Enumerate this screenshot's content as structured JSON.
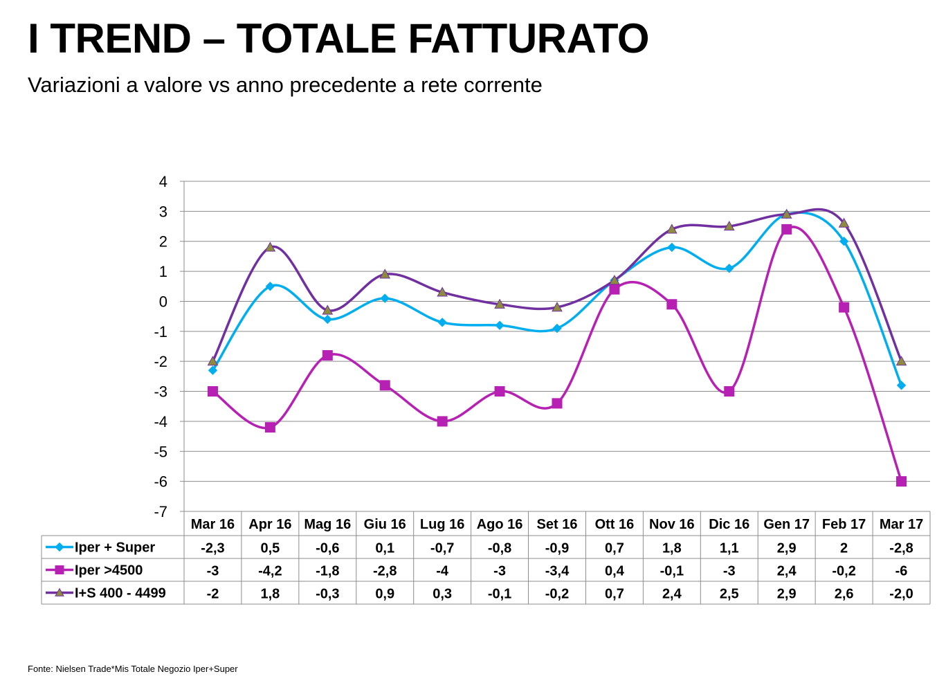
{
  "title": "I TREND – TOTALE FATTURATO",
  "subtitle": "Variazioni a valore vs anno precedente a rete corrente",
  "source": "Fonte: Nielsen Trade*Mis Totale Negozio  Iper+Super",
  "chart_data": {
    "type": "line",
    "smooth": true,
    "grid": true,
    "legend": "data-table-below",
    "ylim": [
      -7,
      4
    ],
    "yticks": [
      4,
      3,
      2,
      1,
      0,
      -1,
      -2,
      -3,
      -4,
      -5,
      -6,
      -7
    ],
    "ytick_labels": [
      "4",
      "3",
      "2",
      "1",
      "0",
      "-1",
      "-2",
      "-3",
      "-4",
      "-5",
      "-6",
      "-7"
    ],
    "categories": [
      "Mar 16",
      "Apr 16",
      "Mag 16",
      "Giu 16",
      "Lug 16",
      "Ago 16",
      "Set 16",
      "Ott 16",
      "Nov 16",
      "Dic 16",
      "Gen 17",
      "Feb 17",
      "Mar 17"
    ],
    "series": [
      {
        "name": "Iper + Super",
        "color": "#00AEEF",
        "marker": "diamond",
        "values": [
          -2.3,
          0.5,
          -0.6,
          0.1,
          -0.7,
          -0.8,
          -0.9,
          0.7,
          1.8,
          1.1,
          2.9,
          2,
          -2.8
        ],
        "labels": [
          "-2,3",
          "0,5",
          "-0,6",
          "0,1",
          "-0,7",
          "-0,8",
          "-0,9",
          "0,7",
          "1,8",
          "1,1",
          "2,9",
          "2",
          "-2,8"
        ]
      },
      {
        "name": "Iper >4500",
        "color": "#B620B3",
        "marker": "square",
        "values": [
          -3,
          -4.2,
          -1.8,
          -2.8,
          -4,
          -3,
          -3.4,
          0.4,
          -0.1,
          -3,
          2.4,
          -0.2,
          -6
        ],
        "labels": [
          "-3",
          "-4,2",
          "-1,8",
          "-2,8",
          "-4",
          "-3",
          "-3,4",
          "0,4",
          "-0,1",
          "-3",
          "2,4",
          "-0,2",
          "-6"
        ]
      },
      {
        "name": "I+S 400 - 4499",
        "color": "#7030A0",
        "marker": "triangle",
        "marker_color": "#8C8C3C",
        "values": [
          -2,
          1.8,
          -0.3,
          0.9,
          0.3,
          -0.1,
          -0.2,
          0.7,
          2.4,
          2.5,
          2.9,
          2.6,
          -2.0
        ],
        "labels": [
          "-2",
          "1,8",
          "-0,3",
          "0,9",
          "0,3",
          "-0,1",
          "-0,2",
          "0,7",
          "2,4",
          "2,5",
          "2,9",
          "2,6",
          "-2,0"
        ]
      }
    ]
  }
}
